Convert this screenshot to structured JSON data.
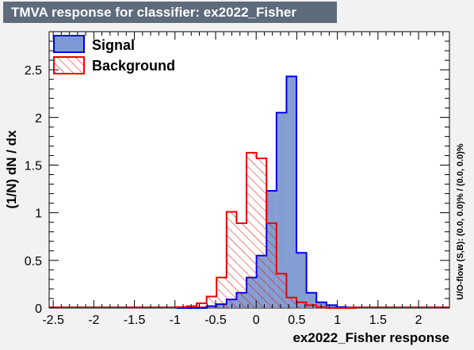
{
  "chart_data": {
    "type": "area",
    "title": "TMVA response for classifier: ex2022_Fisher",
    "xlabel": "ex2022_Fisher response",
    "ylabel": "(1/N) dN / dx",
    "side_label": "U/O-flow (S,B): (0.0, 0.0)% / (0.0, 0.0)%",
    "xlim": [
      -2.55,
      2.38
    ],
    "ylim": [
      0,
      2.9
    ],
    "x_ticks": [
      "-2.5",
      "-2",
      "-1.5",
      "-1",
      "-0.5",
      "0",
      "0.5",
      "1",
      "1.5",
      "2"
    ],
    "y_ticks": [
      "0",
      "0.5",
      "1",
      "1.5",
      "2",
      "2.5"
    ],
    "grid": false,
    "legend_position": "top-left",
    "bin_width": 0.123,
    "first_bin_low": -0.98,
    "series": [
      {
        "name": "Signal",
        "color": "#0000ee",
        "fill": "#7d99d1",
        "values": [
          0.0,
          0.0,
          0.0,
          0.02,
          0.04,
          0.09,
          0.16,
          0.32,
          0.55,
          1.23,
          2.05,
          2.43,
          0.58,
          0.16,
          0.06,
          0.03,
          0.01,
          0.0
        ]
      },
      {
        "name": "Background",
        "color": "#ee0000",
        "fill": "hatch",
        "values": [
          0.01,
          0.02,
          0.05,
          0.12,
          0.32,
          1.01,
          0.89,
          1.63,
          1.57,
          0.89,
          0.36,
          0.11,
          0.06,
          0.03,
          0.01,
          0.0,
          0.0,
          0.0
        ]
      }
    ]
  }
}
